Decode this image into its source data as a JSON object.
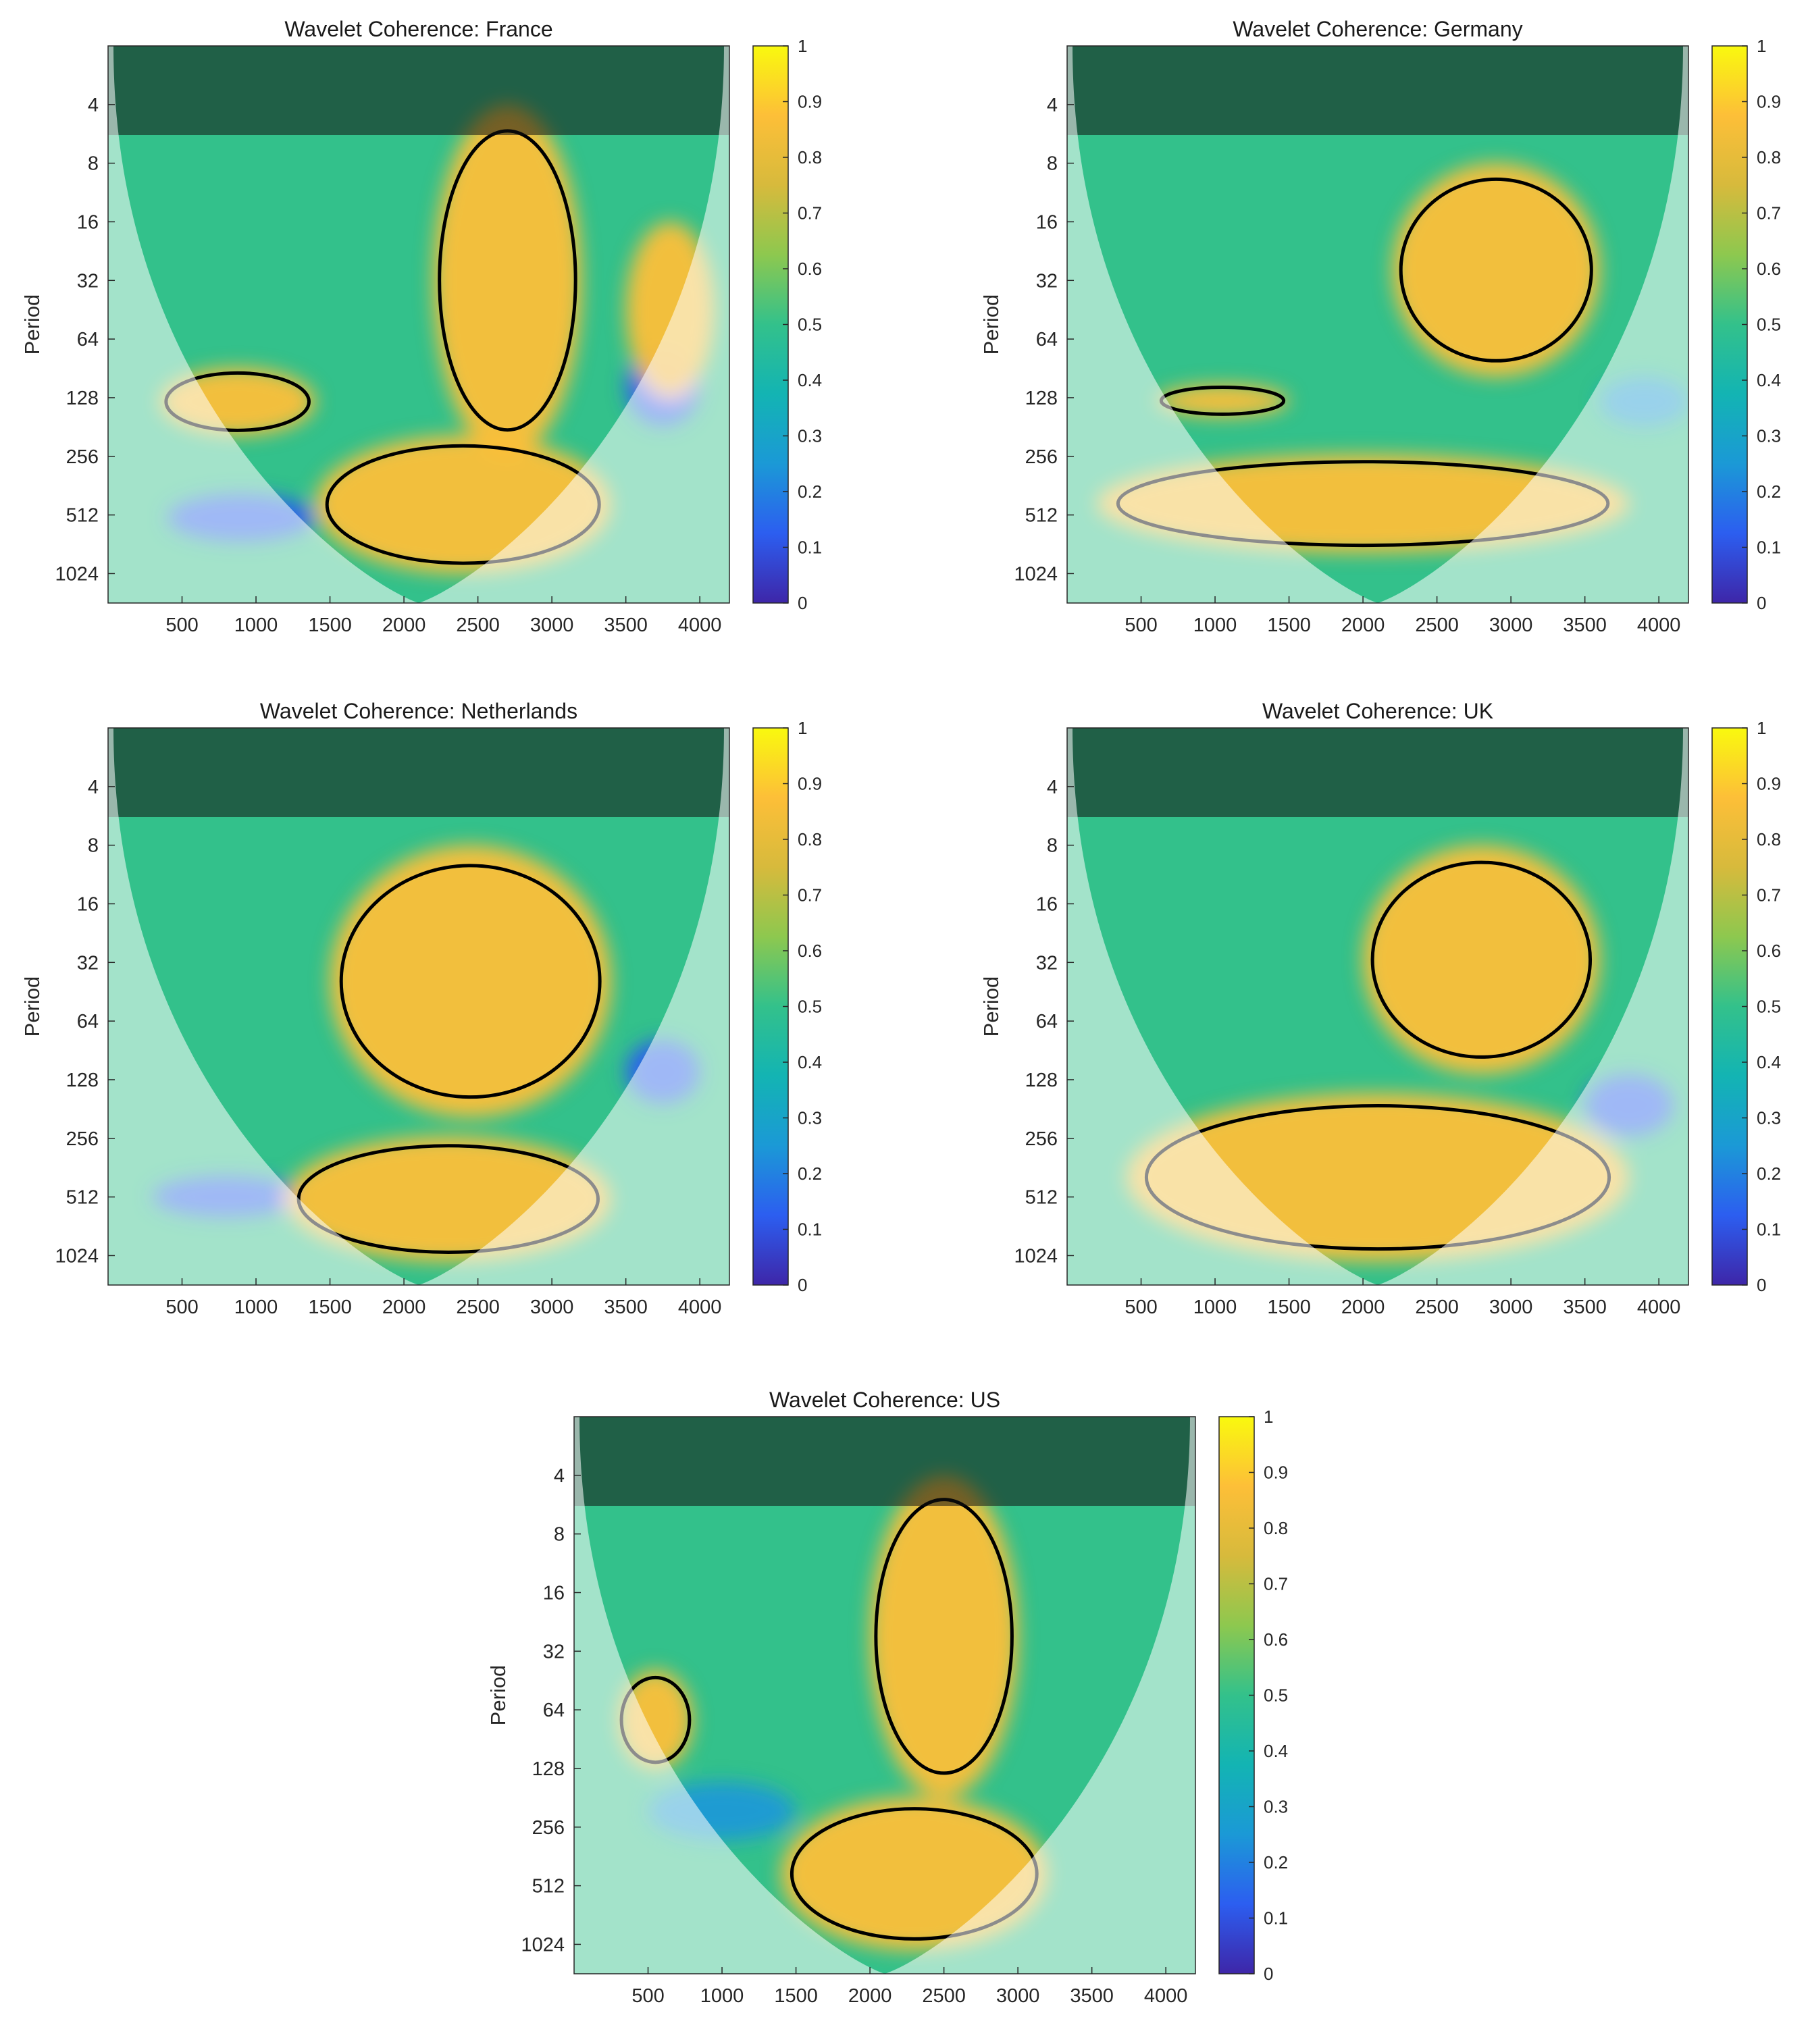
{
  "figure": {
    "panels": [
      {
        "title": "Wavelet Coherence: France"
      },
      {
        "title": "Wavelet Coherence: Germany"
      },
      {
        "title": "Wavelet Coherence: Netherlands"
      },
      {
        "title": "Wavelet Coherence: UK"
      },
      {
        "title": "Wavelet Coherence: US"
      }
    ]
  },
  "colors": {
    "colormap": [
      "#3e26a8",
      "#2c5ef0",
      "#1b99d6",
      "#13b4b3",
      "#33c18b",
      "#8dc84f",
      "#d7ba3c",
      "#fdbf38",
      "#f9f90e"
    ],
    "contour": "#000000",
    "cone_shade": "#ffffff",
    "secondary_contour": "#8a8a8a"
  },
  "chart_data": [
    {
      "type": "heatmap",
      "title": "Wavelet Coherence: France",
      "xlabel": "",
      "ylabel": "Period",
      "x_ticks": [
        500,
        1000,
        1500,
        2000,
        2500,
        3000,
        3500,
        4000
      ],
      "xlim": [
        0,
        4200
      ],
      "y_ticks": [
        4,
        8,
        16,
        32,
        64,
        128,
        256,
        512,
        1024
      ],
      "ylim": [
        2,
        1450
      ],
      "y_scale": "log2",
      "colorbar": {
        "ticks": [
          "0",
          "0.1",
          "0.2",
          "0.3",
          "0.4",
          "0.5",
          "0.6",
          "0.7",
          "0.8",
          "0.9",
          "1"
        ],
        "range": [
          0,
          1
        ]
      },
      "high_coherence_regions": [
        {
          "time": [
            1400,
            3400
          ],
          "period": [
            200,
            1024
          ],
          "coherence": 0.9
        },
        {
          "time": [
            2200,
            3200
          ],
          "period": [
            4,
            256
          ],
          "coherence": 0.9
        },
        {
          "time": [
            350,
            1400
          ],
          "period": [
            90,
            200
          ],
          "coherence": 0.85
        },
        {
          "time": [
            3500,
            4100
          ],
          "period": [
            16,
            128
          ],
          "coherence": 0.85
        }
      ],
      "low_coherence_regions": [
        {
          "time": [
            400,
            1400
          ],
          "period": [
            400,
            700
          ],
          "coherence": 0.15
        },
        {
          "time": [
            3500,
            4000
          ],
          "period": [
            70,
            180
          ],
          "coherence": 0.15
        }
      ]
    },
    {
      "type": "heatmap",
      "title": "Wavelet Coherence: Germany",
      "xlabel": "",
      "ylabel": "Period",
      "x_ticks": [
        500,
        1000,
        1500,
        2000,
        2500,
        3000,
        3500,
        4000
      ],
      "xlim": [
        0,
        4200
      ],
      "y_ticks": [
        4,
        8,
        16,
        32,
        64,
        128,
        256,
        512,
        1024
      ],
      "ylim": [
        2,
        1450
      ],
      "y_scale": "log2",
      "colorbar": {
        "ticks": [
          "0",
          "0.1",
          "0.2",
          "0.3",
          "0.4",
          "0.5",
          "0.6",
          "0.7",
          "0.8",
          "0.9",
          "1"
        ],
        "range": [
          0,
          1
        ]
      },
      "high_coherence_regions": [
        {
          "time": [
            200,
            3800
          ],
          "period": [
            250,
            800
          ],
          "coherence": 0.9
        },
        {
          "time": [
            2200,
            3600
          ],
          "period": [
            8,
            100
          ],
          "coherence": 0.9
        },
        {
          "time": [
            600,
            1500
          ],
          "period": [
            110,
            160
          ],
          "coherence": 0.85
        }
      ],
      "low_coherence_regions": [
        {
          "time": [
            3600,
            4200
          ],
          "period": [
            100,
            180
          ],
          "coherence": 0.2
        }
      ]
    },
    {
      "type": "heatmap",
      "title": "Wavelet Coherence: Netherlands",
      "xlabel": "",
      "ylabel": "Period",
      "x_ticks": [
        500,
        1000,
        1500,
        2000,
        2500,
        3000,
        3500,
        4000
      ],
      "xlim": [
        0,
        4200
      ],
      "y_ticks": [
        4,
        8,
        16,
        32,
        64,
        128,
        256,
        512,
        1024
      ],
      "ylim": [
        2,
        1450
      ],
      "y_scale": "log2",
      "colorbar": {
        "ticks": [
          "0",
          "0.1",
          "0.2",
          "0.3",
          "0.4",
          "0.5",
          "0.6",
          "0.7",
          "0.8",
          "0.9",
          "1"
        ],
        "range": [
          0,
          1
        ]
      },
      "high_coherence_regions": [
        {
          "time": [
            1200,
            3400
          ],
          "period": [
            250,
            1100
          ],
          "coherence": 0.9
        },
        {
          "time": [
            1500,
            3400
          ],
          "period": [
            8,
            200
          ],
          "coherence": 0.85
        }
      ],
      "low_coherence_regions": [
        {
          "time": [
            300,
            1300
          ],
          "period": [
            400,
            650
          ],
          "coherence": 0.15
        },
        {
          "time": [
            3500,
            4000
          ],
          "period": [
            80,
            170
          ],
          "coherence": 0.15
        }
      ]
    },
    {
      "type": "heatmap",
      "title": "Wavelet Coherence: UK",
      "xlabel": "",
      "ylabel": "Period",
      "x_ticks": [
        500,
        1000,
        1500,
        2000,
        2500,
        3000,
        3500,
        4000
      ],
      "xlim": [
        0,
        4200
      ],
      "y_ticks": [
        4,
        8,
        16,
        32,
        64,
        128,
        256,
        512,
        1024
      ],
      "ylim": [
        2,
        1450
      ],
      "y_scale": "log2",
      "colorbar": {
        "ticks": [
          "0",
          "0.1",
          "0.2",
          "0.3",
          "0.4",
          "0.5",
          "0.6",
          "0.7",
          "0.8",
          "0.9",
          "1"
        ],
        "range": [
          0,
          1
        ]
      },
      "high_coherence_regions": [
        {
          "time": [
            400,
            3800
          ],
          "period": [
            150,
            1100
          ],
          "coherence": 0.9
        },
        {
          "time": [
            2000,
            3600
          ],
          "period": [
            8,
            120
          ],
          "coherence": 0.85
        }
      ],
      "low_coherence_regions": [
        {
          "time": [
            3500,
            4100
          ],
          "period": [
            120,
            250
          ],
          "coherence": 0.15
        }
      ]
    },
    {
      "type": "heatmap",
      "title": "Wavelet Coherence: US",
      "xlabel": "",
      "ylabel": "Period",
      "x_ticks": [
        500,
        1000,
        1500,
        2000,
        2500,
        3000,
        3500,
        4000
      ],
      "xlim": [
        0,
        4200
      ],
      "y_ticks": [
        4,
        8,
        16,
        32,
        64,
        128,
        256,
        512,
        1024
      ],
      "ylim": [
        2,
        1450
      ],
      "y_scale": "log2",
      "colorbar": {
        "ticks": [
          "0",
          "0.1",
          "0.2",
          "0.3",
          "0.4",
          "0.5",
          "0.6",
          "0.7",
          "0.8",
          "0.9",
          "1"
        ],
        "range": [
          0,
          1
        ]
      },
      "high_coherence_regions": [
        {
          "time": [
            1400,
            3200
          ],
          "period": [
            180,
            1100
          ],
          "coherence": 0.9
        },
        {
          "time": [
            2000,
            3000
          ],
          "period": [
            4,
            180
          ],
          "coherence": 0.9
        },
        {
          "time": [
            300,
            800
          ],
          "period": [
            40,
            130
          ],
          "coherence": 0.85
        }
      ],
      "low_coherence_regions": [
        {
          "time": [
            500,
            1500
          ],
          "period": [
            150,
            300
          ],
          "coherence": 0.25
        }
      ]
    }
  ]
}
